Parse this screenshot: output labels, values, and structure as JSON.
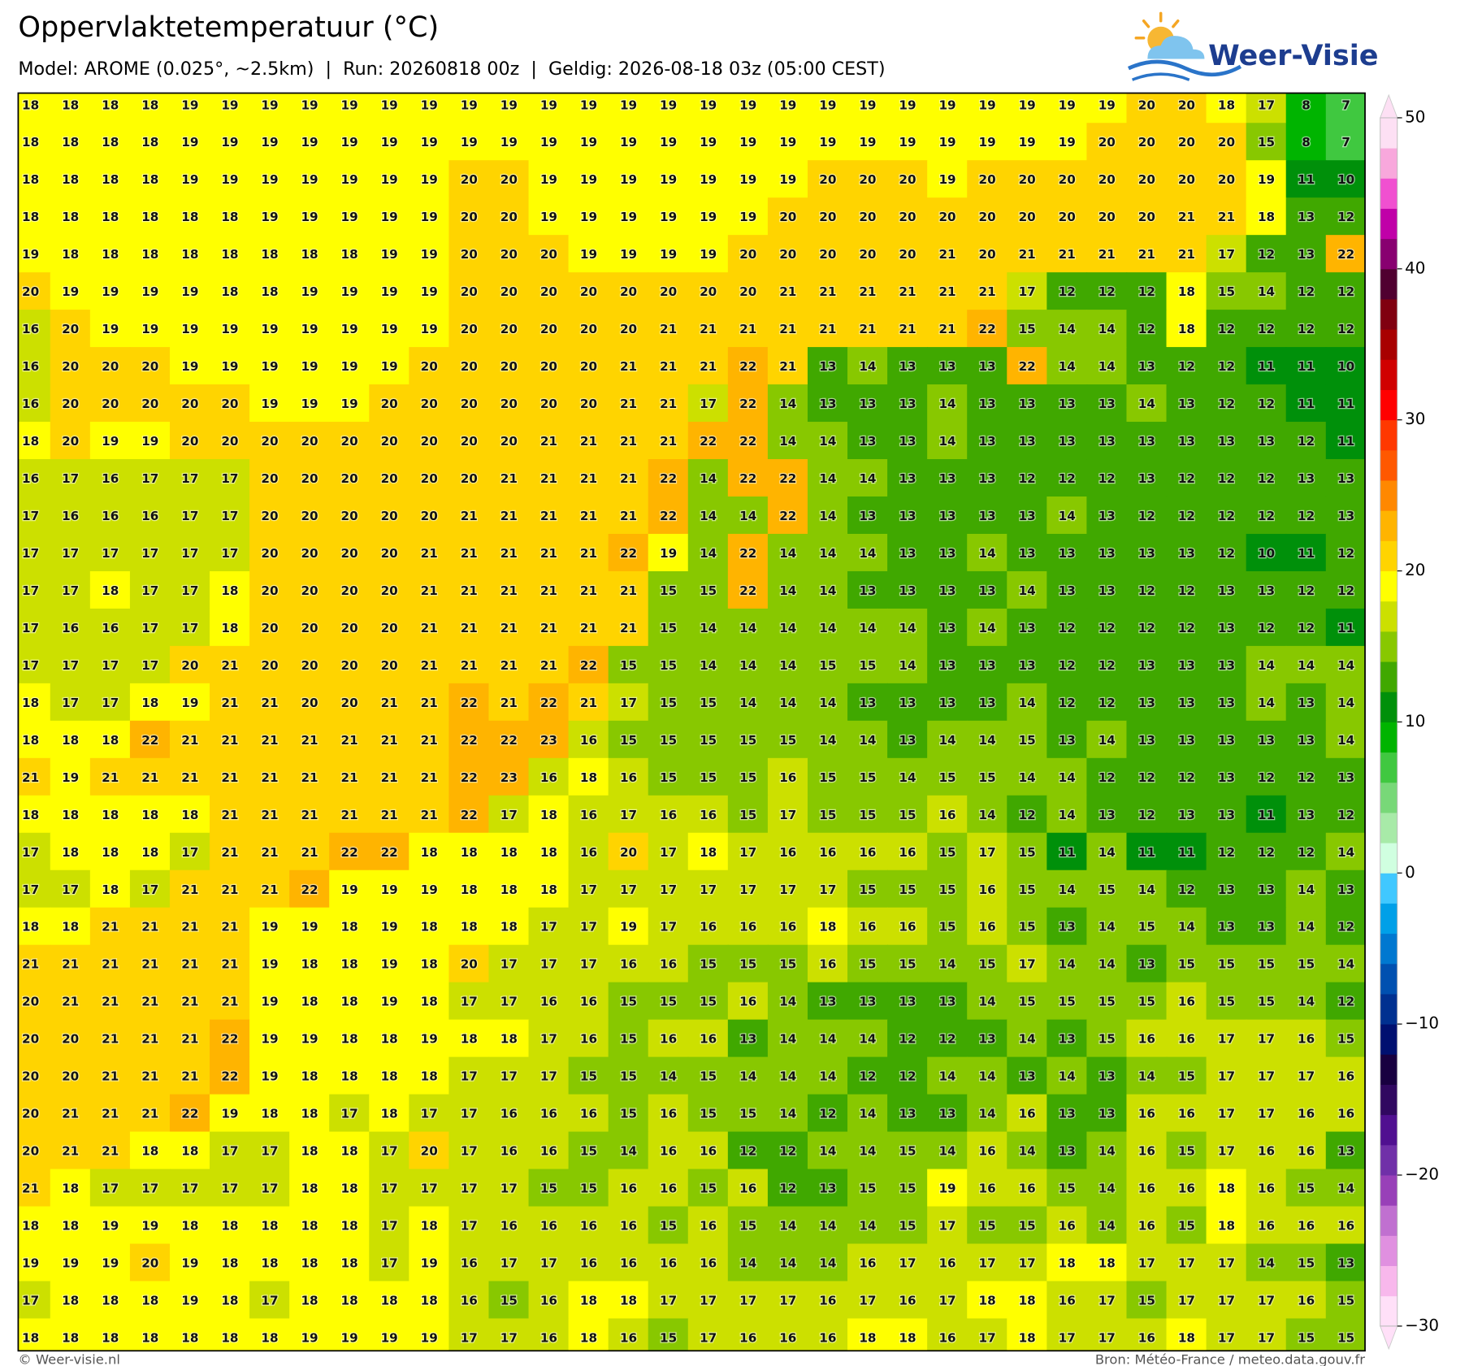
{
  "header": {
    "title": "Oppervlaktetemperatuur (°C)",
    "subtitle": "Model: AROME (0.025°, ~2.5km)  |  Run: 20260818 00z  |  Geldig: 2026-08-18 03z (05:00 CEST)"
  },
  "logo": {
    "text": "Weer-Visie"
  },
  "map": {
    "values": [
      [
        18,
        18,
        18,
        18,
        19,
        19,
        19,
        19,
        19,
        19,
        19,
        19,
        19,
        19,
        19,
        19,
        19,
        19,
        19,
        19,
        19,
        19,
        19,
        19,
        19,
        19,
        19,
        19,
        20,
        20,
        18,
        17,
        8,
        7
      ],
      [
        18,
        18,
        18,
        18,
        19,
        19,
        19,
        19,
        19,
        19,
        19,
        19,
        19,
        19,
        19,
        19,
        19,
        19,
        19,
        19,
        19,
        19,
        19,
        19,
        19,
        19,
        19,
        20,
        20,
        20,
        20,
        15,
        8,
        7
      ],
      [
        18,
        18,
        18,
        18,
        19,
        19,
        19,
        19,
        19,
        19,
        19,
        20,
        20,
        19,
        19,
        19,
        19,
        19,
        19,
        19,
        20,
        20,
        20,
        19,
        20,
        20,
        20,
        20,
        20,
        20,
        20,
        19,
        11,
        10
      ],
      [
        18,
        18,
        18,
        18,
        18,
        18,
        19,
        19,
        19,
        19,
        19,
        20,
        20,
        19,
        19,
        19,
        19,
        19,
        19,
        20,
        20,
        20,
        20,
        20,
        20,
        20,
        20,
        20,
        20,
        21,
        21,
        18,
        13,
        12
      ],
      [
        19,
        18,
        18,
        18,
        18,
        18,
        18,
        18,
        18,
        19,
        19,
        20,
        20,
        20,
        19,
        19,
        19,
        19,
        20,
        20,
        20,
        20,
        20,
        21,
        20,
        21,
        21,
        21,
        21,
        21,
        17,
        12,
        13,
        22
      ],
      [
        20,
        19,
        19,
        19,
        19,
        18,
        18,
        19,
        19,
        19,
        19,
        20,
        20,
        20,
        20,
        20,
        20,
        20,
        20,
        21,
        21,
        21,
        21,
        21,
        21,
        17,
        12,
        12,
        12,
        18,
        15,
        14,
        12,
        12
      ],
      [
        16,
        20,
        19,
        19,
        19,
        19,
        19,
        19,
        19,
        19,
        19,
        20,
        20,
        20,
        20,
        20,
        21,
        21,
        21,
        21,
        21,
        21,
        21,
        21,
        22,
        15,
        14,
        14,
        12,
        18,
        12,
        12,
        12,
        12
      ],
      [
        16,
        20,
        20,
        20,
        19,
        19,
        19,
        19,
        19,
        19,
        20,
        20,
        20,
        20,
        20,
        21,
        21,
        21,
        22,
        21,
        13,
        14,
        13,
        13,
        13,
        22,
        14,
        14,
        13,
        12,
        12,
        11,
        11,
        10
      ],
      [
        16,
        20,
        20,
        20,
        20,
        20,
        19,
        19,
        19,
        20,
        20,
        20,
        20,
        20,
        20,
        21,
        21,
        17,
        22,
        14,
        13,
        13,
        13,
        14,
        13,
        13,
        13,
        13,
        14,
        13,
        12,
        12,
        11,
        11
      ],
      [
        18,
        20,
        19,
        19,
        20,
        20,
        20,
        20,
        20,
        20,
        20,
        20,
        20,
        21,
        21,
        21,
        21,
        22,
        22,
        14,
        14,
        13,
        13,
        14,
        13,
        13,
        13,
        13,
        13,
        13,
        13,
        13,
        12,
        11
      ],
      [
        16,
        17,
        16,
        17,
        17,
        17,
        20,
        20,
        20,
        20,
        20,
        20,
        21,
        21,
        21,
        21,
        22,
        14,
        22,
        22,
        14,
        14,
        13,
        13,
        13,
        12,
        12,
        12,
        13,
        12,
        12,
        12,
        13,
        13
      ],
      [
        17,
        16,
        16,
        16,
        17,
        17,
        20,
        20,
        20,
        20,
        20,
        21,
        21,
        21,
        21,
        21,
        22,
        14,
        14,
        22,
        14,
        13,
        13,
        13,
        13,
        13,
        14,
        13,
        12,
        12,
        12,
        12,
        12,
        13
      ],
      [
        17,
        17,
        17,
        17,
        17,
        17,
        20,
        20,
        20,
        20,
        21,
        21,
        21,
        21,
        21,
        22,
        19,
        14,
        22,
        14,
        14,
        14,
        13,
        13,
        14,
        13,
        13,
        13,
        13,
        13,
        12,
        10,
        11,
        12
      ],
      [
        17,
        17,
        18,
        17,
        17,
        18,
        20,
        20,
        20,
        20,
        21,
        21,
        21,
        21,
        21,
        21,
        15,
        15,
        22,
        14,
        14,
        13,
        13,
        13,
        13,
        14,
        13,
        13,
        12,
        12,
        13,
        13,
        12,
        12
      ],
      [
        17,
        16,
        16,
        17,
        17,
        18,
        20,
        20,
        20,
        20,
        21,
        21,
        21,
        21,
        21,
        21,
        15,
        14,
        14,
        14,
        14,
        14,
        14,
        13,
        14,
        13,
        12,
        12,
        12,
        12,
        13,
        12,
        12,
        11
      ],
      [
        17,
        17,
        17,
        17,
        20,
        21,
        20,
        20,
        20,
        20,
        21,
        21,
        21,
        21,
        22,
        15,
        15,
        14,
        14,
        14,
        15,
        15,
        14,
        13,
        13,
        13,
        12,
        12,
        13,
        13,
        13,
        14,
        14,
        14
      ],
      [
        18,
        17,
        17,
        18,
        19,
        21,
        21,
        20,
        20,
        21,
        21,
        22,
        21,
        22,
        21,
        17,
        15,
        15,
        14,
        14,
        14,
        13,
        13,
        13,
        13,
        14,
        12,
        12,
        13,
        13,
        13,
        14,
        13,
        14
      ],
      [
        18,
        18,
        18,
        22,
        21,
        21,
        21,
        21,
        21,
        21,
        21,
        22,
        22,
        23,
        16,
        15,
        15,
        15,
        15,
        15,
        14,
        14,
        13,
        14,
        14,
        15,
        13,
        14,
        13,
        13,
        13,
        13,
        13,
        14
      ],
      [
        21,
        19,
        21,
        21,
        21,
        21,
        21,
        21,
        21,
        21,
        21,
        22,
        23,
        16,
        18,
        16,
        15,
        15,
        15,
        16,
        15,
        15,
        14,
        15,
        15,
        14,
        14,
        12,
        12,
        12,
        13,
        12,
        12,
        13
      ],
      [
        18,
        18,
        18,
        18,
        18,
        21,
        21,
        21,
        21,
        21,
        21,
        22,
        17,
        18,
        16,
        17,
        16,
        16,
        15,
        17,
        15,
        15,
        15,
        16,
        14,
        12,
        14,
        13,
        12,
        13,
        13,
        11,
        13,
        12
      ],
      [
        17,
        18,
        18,
        18,
        17,
        21,
        21,
        21,
        22,
        22,
        18,
        18,
        18,
        18,
        16,
        20,
        17,
        18,
        17,
        16,
        16,
        16,
        16,
        15,
        17,
        15,
        11,
        14,
        11,
        11,
        12,
        12,
        12,
        14
      ],
      [
        17,
        17,
        18,
        17,
        21,
        21,
        21,
        22,
        19,
        19,
        19,
        18,
        18,
        18,
        17,
        17,
        17,
        17,
        17,
        17,
        17,
        15,
        15,
        15,
        16,
        15,
        14,
        15,
        14,
        12,
        13,
        13,
        14,
        13
      ],
      [
        18,
        18,
        21,
        21,
        21,
        21,
        19,
        19,
        18,
        19,
        18,
        18,
        18,
        17,
        17,
        19,
        17,
        16,
        16,
        16,
        18,
        16,
        16,
        15,
        16,
        15,
        13,
        14,
        15,
        14,
        13,
        13,
        14,
        12
      ],
      [
        21,
        21,
        21,
        21,
        21,
        21,
        19,
        18,
        18,
        19,
        18,
        20,
        17,
        17,
        17,
        16,
        16,
        15,
        15,
        15,
        16,
        15,
        15,
        14,
        15,
        17,
        14,
        14,
        13,
        15,
        15,
        15,
        15,
        14
      ],
      [
        20,
        21,
        21,
        21,
        21,
        21,
        19,
        18,
        18,
        19,
        18,
        17,
        17,
        16,
        16,
        15,
        15,
        15,
        16,
        14,
        13,
        13,
        13,
        13,
        14,
        15,
        15,
        15,
        15,
        16,
        15,
        15,
        14,
        12
      ],
      [
        20,
        20,
        21,
        21,
        21,
        22,
        19,
        19,
        18,
        18,
        19,
        18,
        18,
        17,
        16,
        15,
        16,
        16,
        13,
        14,
        14,
        14,
        12,
        12,
        13,
        14,
        13,
        15,
        16,
        16,
        17,
        17,
        16,
        15
      ],
      [
        20,
        20,
        21,
        21,
        21,
        22,
        19,
        18,
        18,
        18,
        18,
        17,
        17,
        17,
        15,
        15,
        14,
        15,
        14,
        14,
        14,
        12,
        12,
        14,
        14,
        13,
        14,
        13,
        14,
        15,
        17,
        17,
        17,
        16
      ],
      [
        20,
        21,
        21,
        21,
        22,
        19,
        18,
        18,
        17,
        18,
        17,
        17,
        16,
        16,
        16,
        15,
        16,
        15,
        15,
        14,
        12,
        14,
        13,
        13,
        14,
        16,
        13,
        13,
        16,
        16,
        17,
        17,
        16,
        16
      ],
      [
        20,
        21,
        21,
        18,
        18,
        17,
        17,
        18,
        18,
        17,
        20,
        17,
        16,
        16,
        15,
        14,
        16,
        16,
        12,
        12,
        14,
        14,
        15,
        14,
        16,
        14,
        13,
        14,
        16,
        15,
        17,
        16,
        16,
        13
      ],
      [
        21,
        18,
        17,
        17,
        17,
        17,
        17,
        18,
        18,
        17,
        17,
        17,
        17,
        15,
        15,
        16,
        16,
        15,
        16,
        12,
        13,
        15,
        15,
        19,
        16,
        16,
        15,
        14,
        16,
        16,
        18,
        16,
        15,
        14
      ],
      [
        18,
        18,
        19,
        19,
        18,
        18,
        18,
        18,
        18,
        17,
        18,
        17,
        16,
        16,
        16,
        16,
        15,
        16,
        15,
        14,
        14,
        14,
        15,
        17,
        15,
        15,
        16,
        14,
        16,
        15,
        18,
        16,
        16,
        16
      ],
      [
        19,
        19,
        19,
        20,
        19,
        18,
        18,
        18,
        18,
        17,
        19,
        16,
        17,
        17,
        16,
        16,
        16,
        16,
        14,
        14,
        14,
        16,
        17,
        16,
        17,
        17,
        18,
        18,
        17,
        17,
        17,
        14,
        15,
        13
      ],
      [
        17,
        18,
        18,
        18,
        19,
        18,
        17,
        18,
        18,
        18,
        18,
        16,
        15,
        16,
        18,
        18,
        17,
        17,
        17,
        17,
        16,
        17,
        16,
        17,
        18,
        18,
        16,
        17,
        15,
        17,
        17,
        17,
        16,
        15
      ],
      [
        18,
        18,
        18,
        18,
        18,
        18,
        18,
        19,
        19,
        19,
        19,
        17,
        17,
        16,
        18,
        16,
        15,
        17,
        16,
        16,
        16,
        18,
        18,
        16,
        17,
        18,
        17,
        17,
        16,
        18,
        17,
        17,
        15,
        15
      ]
    ]
  },
  "colorbar": {
    "lim": [
      -30,
      50
    ],
    "ticks": [
      {
        "value": -30,
        "label": "−30"
      },
      {
        "value": -20,
        "label": "−20"
      },
      {
        "value": -10,
        "label": "−10"
      },
      0,
      10,
      20,
      30,
      40,
      50
    ],
    "colors": [
      "#ffe0f8",
      "#f8b8ec",
      "#e090e0",
      "#c070d0",
      "#9840b8",
      "#7030a8",
      "#501090",
      "#300860",
      "#180040",
      "#001070",
      "#003090",
      "#0050b0",
      "#0078d0",
      "#00a0e8",
      "#40c8ff",
      "#d0ffe0",
      "#a8eaa8",
      "#78d878",
      "#40c840",
      "#00b400",
      "#00900a",
      "#40a800",
      "#88c800",
      "#cce000",
      "#ffff00",
      "#ffd400",
      "#ffb400",
      "#ff8800",
      "#ff5800",
      "#ff3800",
      "#ff0000",
      "#d00000",
      "#a80000",
      "#800010",
      "#500030",
      "#880070",
      "#c000a8",
      "#f050d0",
      "#f8a8dc",
      "#fde0f4"
    ]
  },
  "footer": {
    "copyright": "© Weer-visie.nl",
    "source": "Bron: Météo-France / meteo.data.gouv.fr"
  }
}
